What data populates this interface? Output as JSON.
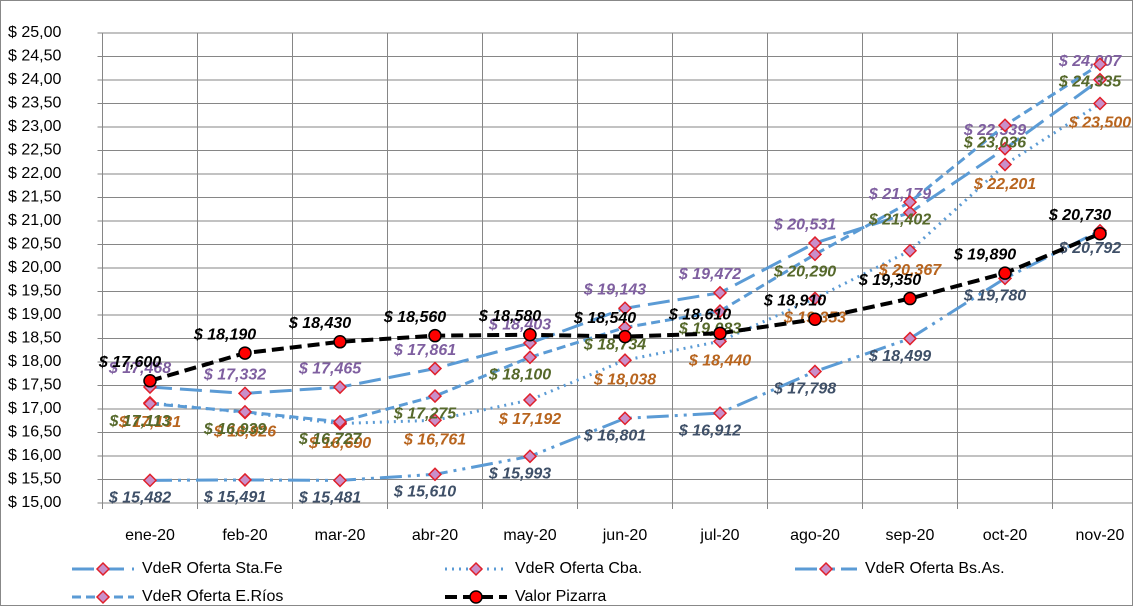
{
  "chart_data": {
    "type": "line",
    "categories": [
      "ene-20",
      "feb-20",
      "mar-20",
      "abr-20",
      "may-20",
      "jun-20",
      "jul-20",
      "ago-20",
      "sep-20",
      "oct-20",
      "nov-20"
    ],
    "ylim": [
      15,
      25
    ],
    "yticks": [
      {
        "value": 15,
        "label": "$ 15,00"
      },
      {
        "value": 15.5,
        "label": "$ 15,50"
      },
      {
        "value": 16,
        "label": "$ 16,00"
      },
      {
        "value": 16.5,
        "label": "$ 16,50"
      },
      {
        "value": 17,
        "label": "$ 17,00"
      },
      {
        "value": 17.5,
        "label": "$ 17,50"
      },
      {
        "value": 18,
        "label": "$ 18,00"
      },
      {
        "value": 18.5,
        "label": "$ 18,50"
      },
      {
        "value": 19,
        "label": "$ 19,00"
      },
      {
        "value": 19.5,
        "label": "$ 19,50"
      },
      {
        "value": 20,
        "label": "$ 20,00"
      },
      {
        "value": 20.5,
        "label": "$ 20,50"
      },
      {
        "value": 21,
        "label": "$ 21,00"
      },
      {
        "value": 21.5,
        "label": "$ 21,50"
      },
      {
        "value": 22,
        "label": "$ 22,00"
      },
      {
        "value": 22.5,
        "label": "$ 22,50"
      },
      {
        "value": 23,
        "label": "$ 23,00"
      },
      {
        "value": 23.5,
        "label": "$ 23,50"
      },
      {
        "value": 24,
        "label": "$ 24,00"
      },
      {
        "value": 24.5,
        "label": "$ 24,50"
      },
      {
        "value": 25,
        "label": "$ 25,00"
      }
    ],
    "grid": true,
    "legend": "bottom",
    "series": [
      {
        "name": "VdeR Oferta Sta.Fe",
        "color": "#5b9bd5",
        "label_color": "#7f5fa0",
        "marker": "diamond",
        "values": [
          17.468,
          17.332,
          17.465,
          17.861,
          18.403,
          19.143,
          19.472,
          20.531,
          21.179,
          22.539,
          24.007
        ],
        "value_labels": [
          "$ 17,468",
          "$ 17,332",
          "$ 17,465",
          "$ 17,861",
          "$ 18,403",
          "$ 19,143",
          "$ 19,472",
          "$ 20,531",
          "$ 21,179",
          "$ 22,539",
          "$ 24,007"
        ]
      },
      {
        "name": "VdeR Oferta Cba.",
        "color": "#5b9bd5",
        "label_color": "#b8651f",
        "marker": "diamond",
        "values": [
          17.131,
          16.926,
          16.69,
          16.761,
          17.192,
          18.038,
          18.44,
          19.353,
          20.367,
          22.201,
          23.5
        ],
        "value_labels": [
          "$ 17,131",
          "$ 16,926",
          "$ 16,690",
          "$ 16,761",
          "$ 17,192",
          "$ 18,038",
          "$ 18,440",
          "$ 19,353",
          "$ 20,367",
          "$ 22,201",
          "$ 23,500"
        ]
      },
      {
        "name": "VdeR Oferta Bs.As.",
        "color": "#5b9bd5",
        "label_color": "#3f5068",
        "marker": "diamond",
        "values": [
          15.482,
          15.491,
          15.481,
          15.61,
          15.993,
          16.801,
          16.912,
          17.798,
          18.499,
          19.78,
          20.792
        ],
        "value_labels": [
          "$ 15,482",
          "$ 15,491",
          "$ 15,481",
          "$ 15,610",
          "$ 15,993",
          "$ 16,801",
          "$ 16,912",
          "$ 17,798",
          "$ 18,499",
          "$ 19,780",
          "$ 20,792"
        ]
      },
      {
        "name": "VdeR Oferta E.Ríos",
        "color": "#5b9bd5",
        "label_color": "#56692b",
        "marker": "diamond",
        "values": [
          17.113,
          16.939,
          16.727,
          17.275,
          18.1,
          18.734,
          19.083,
          20.29,
          21.402,
          23.036,
          24.335
        ],
        "value_labels": [
          "$ 17,113",
          "$ 16,939",
          "$ 16,727",
          "$ 17,275",
          "$ 18,100",
          "$ 18,734",
          "$ 19,083",
          "$ 20,290",
          "$ 21,402",
          "$ 23,036",
          "$ 24,335"
        ]
      },
      {
        "name": "Valor Pizarra",
        "color": "#000000",
        "label_color": "#000000",
        "marker": "circle",
        "values": [
          17.6,
          18.19,
          18.43,
          18.56,
          18.58,
          18.54,
          18.61,
          18.91,
          19.35,
          19.89,
          20.73
        ],
        "value_labels": [
          "$ 17,600",
          "$ 18,190",
          "$ 18,430",
          "$ 18,560",
          "$ 18,580",
          "$ 18,540",
          "$ 18,610",
          "$ 18,910",
          "$ 19,350",
          "$ 19,890",
          "$ 20,730"
        ]
      }
    ]
  }
}
